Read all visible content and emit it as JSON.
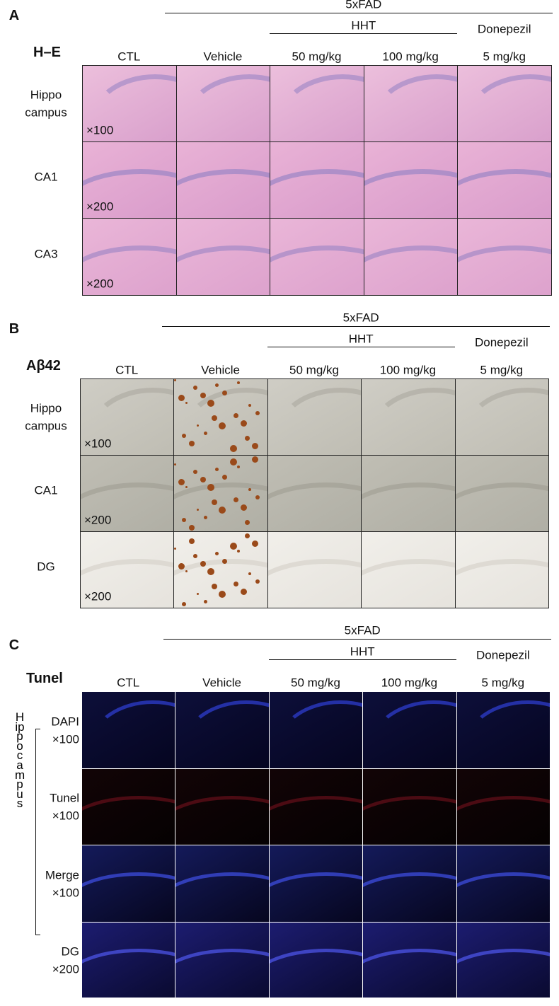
{
  "panels": [
    {
      "letter": "A",
      "stain": "H–E",
      "group": "5xFAD",
      "subgroup": "HHT",
      "columns": [
        "CTL",
        "Vehicle",
        "50 mg/kg",
        "100 mg/kg"
      ],
      "drug": "Donepezil",
      "drug_dose": "5 mg/kg",
      "rows": [
        {
          "label": [
            "Hippo",
            "campus"
          ],
          "magnification": "×100"
        },
        {
          "label": [
            "CA1"
          ],
          "magnification": "×200"
        },
        {
          "label": [
            "CA3"
          ],
          "magnification": "×200"
        }
      ]
    },
    {
      "letter": "B",
      "stain": "Aβ42",
      "group": "5xFAD",
      "subgroup": "HHT",
      "columns": [
        "CTL",
        "Vehicle",
        "50 mg/kg",
        "100 mg/kg"
      ],
      "drug": "Donepezil",
      "drug_dose": "5 mg/kg",
      "rows": [
        {
          "label": [
            "Hippo",
            "campus"
          ],
          "magnification": "×100"
        },
        {
          "label": [
            "CA1"
          ],
          "magnification": "×200"
        },
        {
          "label": [
            "DG"
          ],
          "magnification": "×200"
        }
      ]
    },
    {
      "letter": "C",
      "stain": "Tunel",
      "group": "5xFAD",
      "subgroup": "HHT",
      "columns": [
        "CTL",
        "Vehicle",
        "50 mg/kg",
        "100 mg/kg"
      ],
      "drug": "Donepezil",
      "drug_dose": "5 mg/kg",
      "side_label": "Hippocampus",
      "rows": [
        {
          "label": [
            "DAPI"
          ],
          "magnification": "×100"
        },
        {
          "label": [
            "Tunel"
          ],
          "magnification": "×100"
        },
        {
          "label": [
            "Merge"
          ],
          "magnification": "×100"
        },
        {
          "label": [
            "DG"
          ],
          "magnification": "×200"
        }
      ]
    }
  ]
}
